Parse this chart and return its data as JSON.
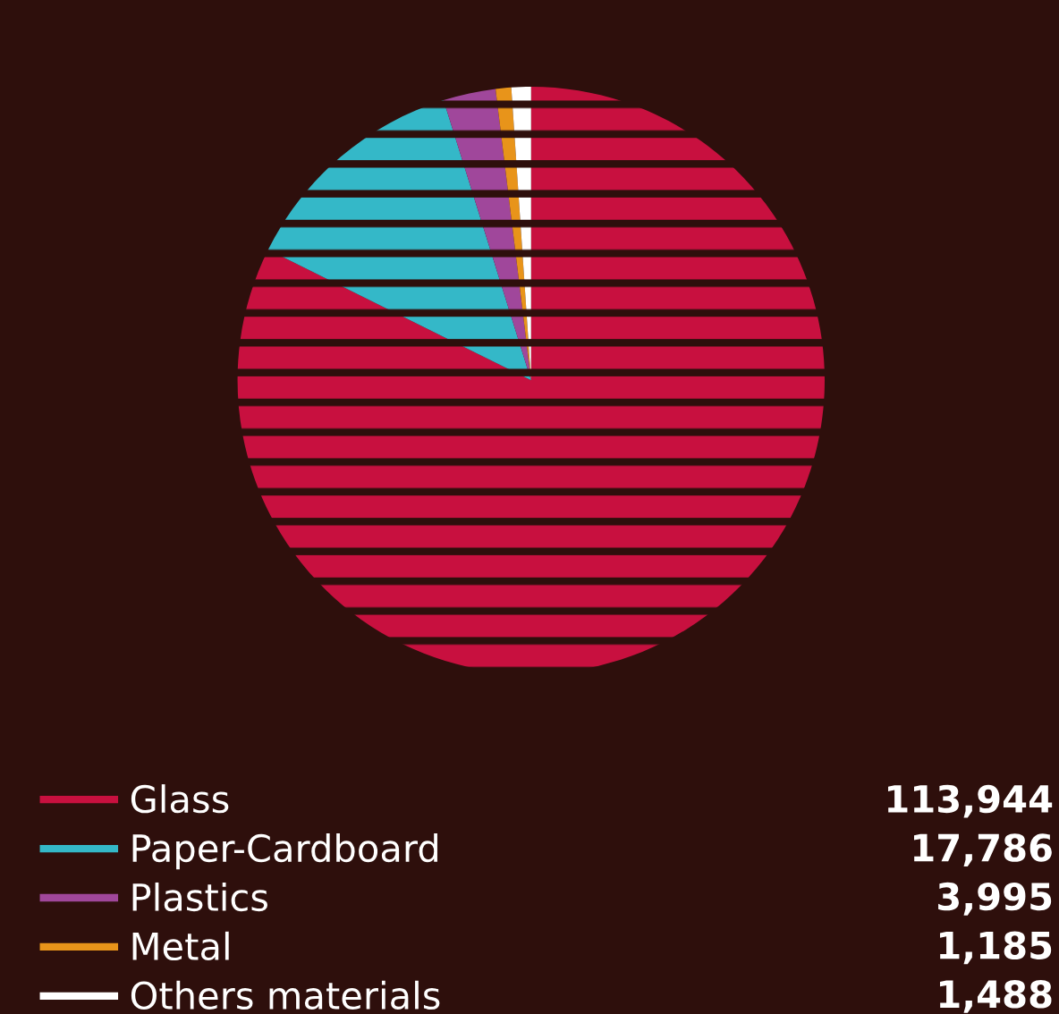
{
  "chart_data": {
    "type": "pie",
    "categories": [
      "Glass",
      "Paper-Cardboard",
      "Plastics",
      "Metal",
      "Others materials"
    ],
    "values": [
      113944,
      17786,
      3995,
      1185,
      1488
    ],
    "value_labels": [
      "113,944",
      "17,786",
      "3,995",
      "1,185",
      "1,488"
    ],
    "colors": [
      "#c8103f",
      "#34b8c8",
      "#a0479b",
      "#e8941a",
      "#ffffff"
    ],
    "legend": "bottom"
  }
}
